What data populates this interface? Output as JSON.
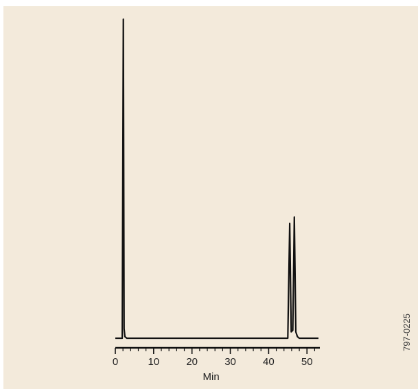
{
  "chart_data": {
    "type": "line",
    "xlabel": "Min",
    "ylabel": "",
    "xlim": [
      0,
      53
    ],
    "x_ticks": [
      0,
      10,
      20,
      30,
      40,
      50
    ],
    "grid": false,
    "series": [
      {
        "x": [
          0,
          1.8,
          2.1,
          2.3,
          2.5,
          3.0,
          45.0,
          45.5,
          45.9,
          46.3,
          46.7,
          47.1,
          47.5,
          48.0,
          53
        ],
        "y": [
          0,
          0,
          100,
          3,
          0.5,
          0,
          0,
          36,
          2,
          2.5,
          38,
          2,
          0.5,
          0,
          0
        ]
      }
    ]
  },
  "figure_code": "797-0225"
}
